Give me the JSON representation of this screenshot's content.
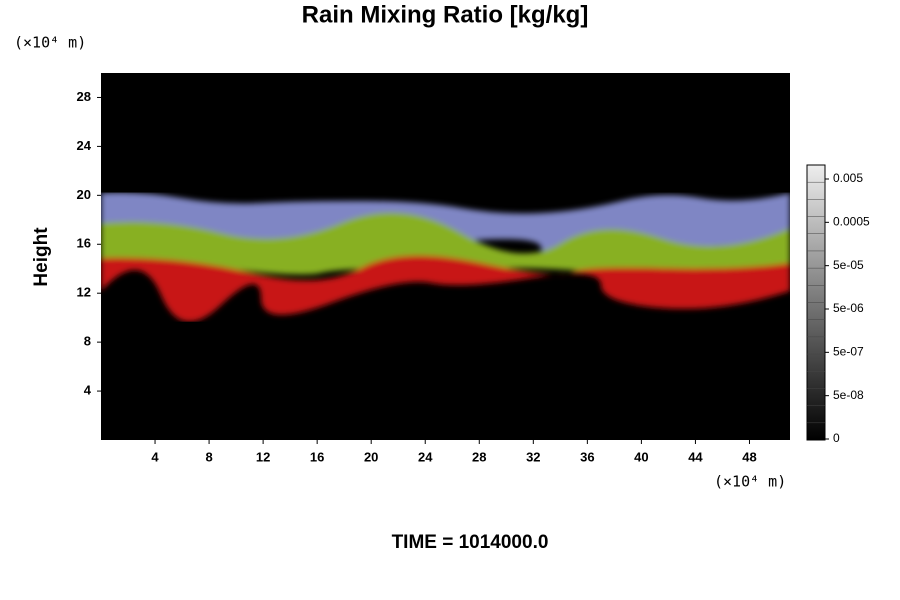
{
  "chart_data": {
    "type": "heatmap",
    "title": "Rain Mixing Ratio [kg/kg]",
    "y_label": "Height",
    "y_unit": "(×10⁴ m)",
    "x_unit": "(×10⁴ m)",
    "footer": "TIME = 1014000.0",
    "xlim": [
      0,
      51
    ],
    "xticks": [
      4,
      8,
      12,
      16,
      20,
      24,
      28,
      32,
      36,
      40,
      44,
      48
    ],
    "ylim": [
      0,
      30
    ],
    "yticks": [
      4,
      8,
      12,
      16,
      20,
      24,
      28
    ],
    "colorbar_ticks": [
      0.005,
      0.0005,
      {
        "value": 5e-05,
        "label": "5e-05"
      },
      {
        "value": 5e-06,
        "label": "5e-06"
      },
      {
        "value": 5e-07,
        "label": "5e-07"
      },
      {
        "value": 5e-08,
        "label": "5e-08"
      },
      0
    ]
  }
}
